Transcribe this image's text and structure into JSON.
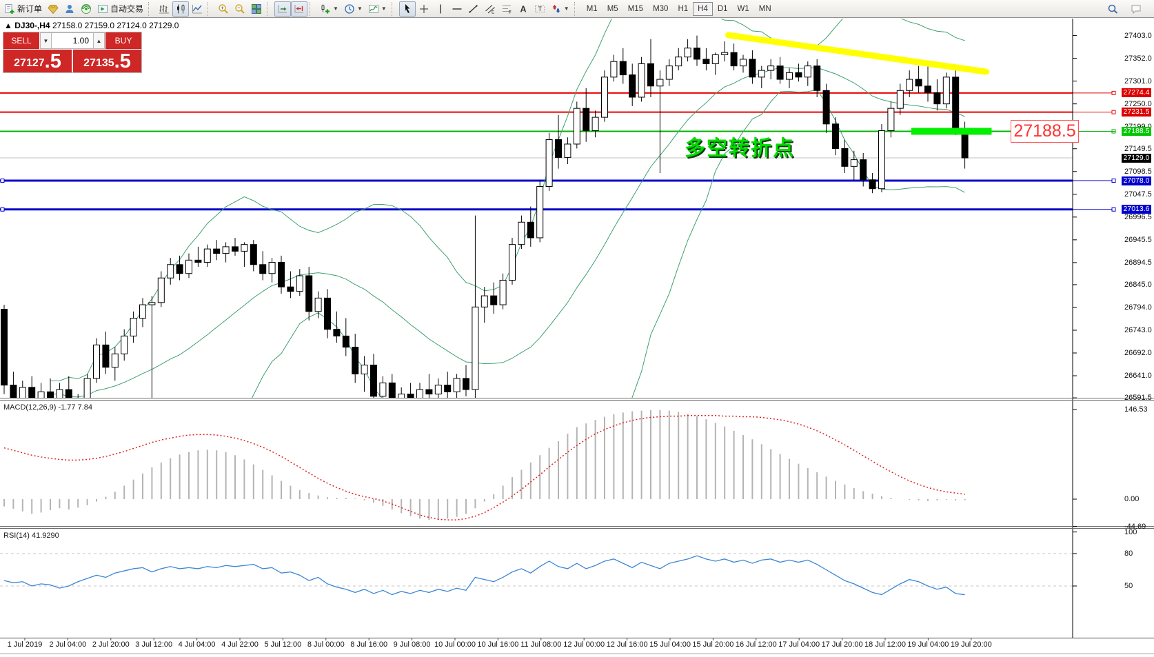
{
  "toolbar": {
    "groups": [
      {
        "items": [
          {
            "icon": "new-order-icon",
            "label": "新订单",
            "interactable": true
          },
          {
            "icon": "gem-icon",
            "interactable": true
          },
          {
            "icon": "community-icon",
            "interactable": true
          },
          {
            "icon": "signals-icon",
            "interactable": true
          },
          {
            "icon": "autotrading-icon",
            "label": "自动交易",
            "interactable": true
          }
        ]
      },
      {
        "items": [
          {
            "icon": "bar-chart-icon",
            "interactable": true
          },
          {
            "icon": "candle-chart-icon",
            "active": true,
            "interactable": true
          },
          {
            "icon": "line-chart-icon",
            "interactable": true
          }
        ]
      },
      {
        "items": [
          {
            "icon": "zoom-in-icon",
            "interactable": true
          },
          {
            "icon": "zoom-out-icon",
            "interactable": true
          },
          {
            "icon": "tile-windows-icon",
            "interactable": true
          }
        ]
      },
      {
        "items": [
          {
            "icon": "auto-scroll-icon",
            "active": true,
            "interactable": true
          },
          {
            "icon": "chart-shift-icon",
            "active": true,
            "interactable": true
          }
        ]
      },
      {
        "items": [
          {
            "icon": "new-chart-icon",
            "caret": true,
            "interactable": true
          },
          {
            "icon": "profiles-icon",
            "caret": true,
            "interactable": true
          },
          {
            "icon": "indicators-icon",
            "caret": true,
            "interactable": true
          }
        ]
      },
      {
        "items": [
          {
            "icon": "cursor-icon",
            "active": true,
            "interactable": true
          },
          {
            "icon": "crosshair-icon",
            "interactable": true
          },
          {
            "icon": "vline-icon",
            "interactable": true
          },
          {
            "icon": "hline-icon",
            "interactable": true
          },
          {
            "icon": "trendline-icon",
            "interactable": true
          },
          {
            "icon": "channel-icon",
            "interactable": true
          },
          {
            "icon": "fibonacci-icon",
            "interactable": true
          },
          {
            "icon": "text-icon",
            "interactable": true
          },
          {
            "icon": "text-label-icon",
            "interactable": true
          },
          {
            "icon": "arrows-icon",
            "caret": true,
            "interactable": true
          }
        ]
      }
    ],
    "timeframes": {
      "options": [
        "M1",
        "M5",
        "M15",
        "M30",
        "H1",
        "H4",
        "D1",
        "W1",
        "MN"
      ],
      "active": "H4"
    },
    "right_icons": [
      "search-icon",
      "chat-icon"
    ]
  },
  "symbol_bar": {
    "symbol": "DJ30-,H4",
    "ohlc": "27158.0 27159.0 27124.0 27129.0"
  },
  "trade_panel": {
    "sell_label": "SELL",
    "buy_label": "BUY",
    "volume": "1.00",
    "sell_price_main": "27127",
    "sell_price_frac": ".5",
    "buy_price_main": "27135",
    "buy_price_frac": ".5"
  },
  "annotations": {
    "turning_point_text": "多空转折点",
    "price_callout": "27188.5"
  },
  "colors": {
    "red_line": "#e80000",
    "green_line": "#00b400",
    "green_zone": "#00f000",
    "blue_line": "#0000cc",
    "current_line": "#c0c0c0",
    "current_tag_bg": "#000000",
    "yellow_trendline": "#ffff00",
    "bollinger": "#3da06e",
    "macd_histogram": "#b4b4b4",
    "macd_signal": "#e02020",
    "rsi_line": "#3c85d6",
    "panel_red": "#cf2626"
  },
  "chart_data": {
    "type": "candlestick",
    "symbol": "DJ30-",
    "timeframe": "H4",
    "y_axis_labels": [
      27403.0,
      27352.0,
      27301.0,
      27250.0,
      27199.0,
      27149.5,
      27098.5,
      27047.5,
      26996.5,
      26945.5,
      26894.5,
      26845.0,
      26794.0,
      26743.0,
      26692.0,
      26641.0,
      26591.5
    ],
    "price_lines": [
      {
        "price": 27274.4,
        "label": "27274.4",
        "color": "#e80000",
        "width": 2,
        "tag_bg": "#dd0000"
      },
      {
        "price": 27231.5,
        "label": "27231.5",
        "color": "#e80000",
        "width": 2,
        "tag_bg": "#dd0000"
      },
      {
        "price": 27188.5,
        "label": "27188.5",
        "color": "#00b400",
        "width": 2,
        "tag_bg": "#00c800"
      },
      {
        "price": 27129.0,
        "label": "27129.0",
        "color": "#c0c0c0",
        "width": 1,
        "tag_bg": "#000000",
        "no_marker": true
      },
      {
        "price": 27078.0,
        "label": "27078.0",
        "color": "#0000cc",
        "width": 3,
        "tag_bg": "#0000cc",
        "left_anchor": true
      },
      {
        "price": 27013.6,
        "label": "27013.6",
        "color": "#0000cc",
        "width": 3,
        "tag_bg": "#0000cc",
        "left_anchor": true
      }
    ],
    "green_zone": {
      "price": 27188.5,
      "bar_start": 98.2,
      "bar_end": 106.9
    },
    "yellow_trendline": {
      "x1_bar": 78.4,
      "y1_price": 27404,
      "x2_bar": 106.3,
      "y2_price": 27322
    },
    "bollinger": {
      "period": 20,
      "deviation": 2
    },
    "candles": [
      [
        26790,
        26800,
        26600,
        26620
      ],
      [
        26620,
        26650,
        26560,
        26590
      ],
      [
        26590,
        26630,
        26555,
        26615
      ],
      [
        26615,
        26640,
        26460,
        26580
      ],
      [
        26580,
        26625,
        26450,
        26605
      ],
      [
        26605,
        26635,
        26570,
        26585
      ],
      [
        26585,
        26625,
        26555,
        26610
      ],
      [
        26610,
        26640,
        26500,
        26550
      ],
      [
        26550,
        26600,
        26440,
        26585
      ],
      [
        26585,
        26645,
        26575,
        26635
      ],
      [
        26635,
        26725,
        26625,
        26710
      ],
      [
        26710,
        26740,
        26645,
        26660
      ],
      [
        26660,
        26705,
        26630,
        26690
      ],
      [
        26690,
        26745,
        26675,
        26730
      ],
      [
        26730,
        26785,
        26715,
        26770
      ],
      [
        26770,
        26815,
        26750,
        26800
      ],
      [
        26800,
        26820,
        26555,
        26805
      ],
      [
        26805,
        26875,
        26795,
        26860
      ],
      [
        26860,
        26905,
        26845,
        26890
      ],
      [
        26890,
        26910,
        26855,
        26870
      ],
      [
        26870,
        26915,
        26860,
        26900
      ],
      [
        26900,
        26930,
        26885,
        26895
      ],
      [
        26895,
        26935,
        26885,
        26925
      ],
      [
        26925,
        26945,
        26900,
        26915
      ],
      [
        26915,
        26940,
        26895,
        26930
      ],
      [
        26930,
        26950,
        26910,
        26920
      ],
      [
        26920,
        26940,
        26885,
        26935
      ],
      [
        26935,
        26945,
        26875,
        26890
      ],
      [
        26890,
        26920,
        26855,
        26870
      ],
      [
        26870,
        26905,
        26850,
        26895
      ],
      [
        26895,
        26910,
        26825,
        26840
      ],
      [
        26840,
        26875,
        26815,
        26830
      ],
      [
        26830,
        26880,
        26820,
        26865
      ],
      [
        26865,
        26885,
        26765,
        26785
      ],
      [
        26785,
        26830,
        26770,
        26815
      ],
      [
        26815,
        26835,
        26725,
        26745
      ],
      [
        26745,
        26785,
        26715,
        26730
      ],
      [
        26730,
        26770,
        26685,
        26705
      ],
      [
        26705,
        26735,
        26625,
        26645
      ],
      [
        26645,
        26685,
        26605,
        26665
      ],
      [
        26665,
        26690,
        26575,
        26595
      ],
      [
        26595,
        26640,
        26565,
        26625
      ],
      [
        26625,
        26645,
        26555,
        26575
      ],
      [
        26575,
        26615,
        26545,
        26600
      ],
      [
        26600,
        26625,
        26560,
        26580
      ],
      [
        26580,
        26625,
        26555,
        26610
      ],
      [
        26610,
        26645,
        26585,
        26600
      ],
      [
        26600,
        26635,
        26565,
        26620
      ],
      [
        26620,
        26650,
        26585,
        26605
      ],
      [
        26605,
        26645,
        26560,
        26635
      ],
      [
        26635,
        26665,
        26595,
        26610
      ],
      [
        26610,
        27000,
        26585,
        26795
      ],
      [
        26795,
        26840,
        26760,
        26820
      ],
      [
        26820,
        26850,
        26780,
        26800
      ],
      [
        26800,
        26870,
        26790,
        26855
      ],
      [
        26855,
        26950,
        26845,
        26935
      ],
      [
        26935,
        27000,
        26925,
        26985
      ],
      [
        26985,
        27020,
        26930,
        26950
      ],
      [
        26950,
        27080,
        26940,
        27065
      ],
      [
        27065,
        27185,
        27055,
        27170
      ],
      [
        27170,
        27225,
        27105,
        27130
      ],
      [
        27130,
        27175,
        27115,
        27160
      ],
      [
        27160,
        27255,
        27150,
        27240
      ],
      [
        27240,
        27285,
        27165,
        27190
      ],
      [
        27190,
        27235,
        27175,
        27220
      ],
      [
        27220,
        27325,
        27210,
        27310
      ],
      [
        27310,
        27360,
        27300,
        27345
      ],
      [
        27345,
        27375,
        27295,
        27315
      ],
      [
        27315,
        27340,
        27245,
        27265
      ],
      [
        27265,
        27355,
        27255,
        27340
      ],
      [
        27340,
        27395,
        27265,
        27290
      ],
      [
        27290,
        27325,
        27095,
        27305
      ],
      [
        27305,
        27350,
        27290,
        27335
      ],
      [
        27335,
        27375,
        27325,
        27355
      ],
      [
        27355,
        27395,
        27345,
        27375
      ],
      [
        27375,
        27403,
        27335,
        27350
      ],
      [
        27350,
        27375,
        27325,
        27340
      ],
      [
        27340,
        27365,
        27315,
        27360
      ],
      [
        27360,
        27390,
        27345,
        27365
      ],
      [
        27365,
        27385,
        27325,
        27335
      ],
      [
        27335,
        27360,
        27320,
        27350
      ],
      [
        27350,
        27370,
        27295,
        27310
      ],
      [
        27310,
        27335,
        27285,
        27325
      ],
      [
        27325,
        27350,
        27305,
        27335
      ],
      [
        27335,
        27355,
        27295,
        27305
      ],
      [
        27305,
        27330,
        27285,
        27320
      ],
      [
        27320,
        27340,
        27300,
        27310
      ],
      [
        27310,
        27345,
        27290,
        27335
      ],
      [
        27335,
        27350,
        27265,
        27280
      ],
      [
        27280,
        27295,
        27185,
        27205
      ],
      [
        27205,
        27220,
        27135,
        27150
      ],
      [
        27150,
        27170,
        27095,
        27110
      ],
      [
        27110,
        27145,
        27080,
        27125
      ],
      [
        27125,
        27140,
        27065,
        27080
      ],
      [
        27080,
        27095,
        27050,
        27060
      ],
      [
        27060,
        27205,
        27052,
        27190
      ],
      [
        27190,
        27255,
        27175,
        27240
      ],
      [
        27240,
        27295,
        27225,
        27280
      ],
      [
        27280,
        27325,
        27265,
        27305
      ],
      [
        27305,
        27335,
        27275,
        27290
      ],
      [
        27290,
        27345,
        27255,
        27275
      ],
      [
        27275,
        27305,
        27235,
        27250
      ],
      [
        27250,
        27320,
        27240,
        27310
      ],
      [
        27310,
        27325,
        27180,
        27190
      ],
      [
        27190,
        27210,
        27105,
        27129
      ]
    ],
    "macd": {
      "label": "MACD(12,26,9) -1.77 7.84",
      "axis": [
        146.53,
        0.0,
        -44.69
      ],
      "histogram": [
        -12,
        -16,
        -20,
        -24,
        -22,
        -18,
        -15,
        -17,
        -14,
        -10,
        -4,
        4,
        12,
        22,
        32,
        42,
        52,
        60,
        67,
        73,
        77,
        80,
        81,
        80,
        77,
        72,
        65,
        57,
        48,
        39,
        30,
        22,
        15,
        10,
        6,
        3,
        2,
        2,
        1,
        -2,
        -6,
        -11,
        -17,
        -23,
        -28,
        -32,
        -34,
        -34,
        -32,
        -29,
        -24,
        -15,
        -4,
        8,
        22,
        36,
        48,
        60,
        72,
        84,
        95,
        107,
        118,
        124,
        130,
        135,
        139,
        142,
        144,
        145,
        146,
        146,
        145,
        143,
        140,
        136,
        131,
        125,
        119,
        112,
        105,
        98,
        90,
        82,
        74,
        66,
        58,
        51,
        44,
        37,
        30,
        24,
        18,
        13,
        9,
        5,
        2,
        0,
        -1,
        -2,
        -3,
        -2,
        -1,
        -2,
        -1.77
      ],
      "signal": [
        84,
        80,
        76,
        72,
        69,
        67,
        65,
        64,
        64,
        65,
        67,
        70,
        74,
        78,
        83,
        88,
        93,
        97,
        100,
        103,
        105,
        106,
        106,
        105,
        103,
        100,
        96,
        91,
        85,
        78,
        70,
        61,
        52,
        43,
        34,
        26,
        19,
        13,
        8,
        4,
        1,
        -3,
        -8,
        -14,
        -20,
        -26,
        -30,
        -33,
        -34,
        -34,
        -32,
        -28,
        -22,
        -14,
        -5,
        5,
        16,
        28,
        40,
        53,
        65,
        77,
        88,
        98,
        107,
        114,
        120,
        125,
        129,
        132,
        134,
        135,
        136,
        136,
        137,
        137,
        137,
        137,
        136,
        136,
        135,
        135,
        134,
        132,
        130,
        127,
        123,
        118,
        112,
        105,
        97,
        89,
        80,
        71,
        62,
        53,
        45,
        37,
        30,
        24,
        19,
        15,
        12,
        10,
        7.84
      ]
    },
    "rsi": {
      "label": "RSI(14) 41.9290",
      "axis": [
        100,
        80,
        50
      ],
      "levels": [
        80,
        50
      ],
      "values": [
        55,
        53,
        54,
        50,
        52,
        51,
        48,
        50,
        54,
        57,
        60,
        58,
        62,
        64,
        66,
        67,
        63,
        66,
        68,
        66,
        67,
        66,
        68,
        67,
        69,
        68,
        69,
        70,
        66,
        67,
        62,
        63,
        60,
        55,
        58,
        52,
        49,
        47,
        44,
        47,
        43,
        46,
        42,
        45,
        43,
        46,
        44,
        47,
        45,
        48,
        46,
        58,
        56,
        54,
        58,
        63,
        66,
        62,
        68,
        73,
        68,
        66,
        71,
        66,
        69,
        73,
        75,
        71,
        67,
        72,
        69,
        66,
        71,
        73,
        75,
        78,
        75,
        73,
        75,
        72,
        74,
        71,
        74,
        75,
        72,
        74,
        72,
        74,
        70,
        65,
        60,
        55,
        52,
        48,
        44,
        42,
        47,
        52,
        56,
        54,
        50,
        47,
        49,
        43,
        41.93
      ]
    },
    "x_axis_labels": [
      "1 Jul 2019",
      "2 Jul 04:00",
      "2 Jul 20:00",
      "3 Jul 12:00",
      "4 Jul 04:00",
      "4 Jul 22:00",
      "5 Jul 12:00",
      "8 Jul 00:00",
      "8 Jul 16:00",
      "9 Jul 08:00",
      "10 Jul 00:00",
      "10 Jul 16:00",
      "11 Jul 08:00",
      "12 Jul 00:00",
      "12 Jul 16:00",
      "15 Jul 04:00",
      "15 Jul 20:00",
      "16 Jul 12:00",
      "17 Jul 04:00",
      "17 Jul 20:00",
      "18 Jul 12:00",
      "19 Jul 04:00",
      "19 Jul 20:00"
    ]
  }
}
